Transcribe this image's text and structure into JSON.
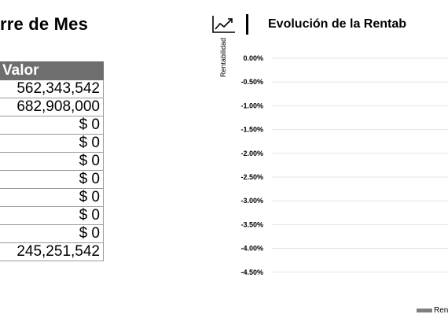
{
  "left_panel": {
    "title": "rre de Mes",
    "table": {
      "header": "Valor",
      "rows": [
        "562,343,542",
        "682,908,000",
        "$ 0",
        "$ 0",
        "$ 0",
        "$ 0",
        "$ 0",
        "$ 0",
        "$ 0",
        "245,251,542"
      ]
    }
  },
  "chart_panel": {
    "icon": "line-chart-icon",
    "title": "Evolución de la Rentab",
    "legend_label": "Ren",
    "accent_color": "#7f7f7f"
  },
  "chart_data": {
    "type": "line",
    "title": "Evolución de la Rentab",
    "ylabel": "Rentabilidad",
    "xlabel": "",
    "y_ticks": [
      "0.00%",
      "-0.50%",
      "-1.00%",
      "-1.50%",
      "-2.00%",
      "-2.50%",
      "-3.00%",
      "-3.50%",
      "-4.00%",
      "-4.50%"
    ],
    "ylim": [
      -4.5,
      0
    ],
    "grid": true,
    "legend": "bottom-right",
    "series": [
      {
        "name": "Ren",
        "values": []
      }
    ]
  }
}
